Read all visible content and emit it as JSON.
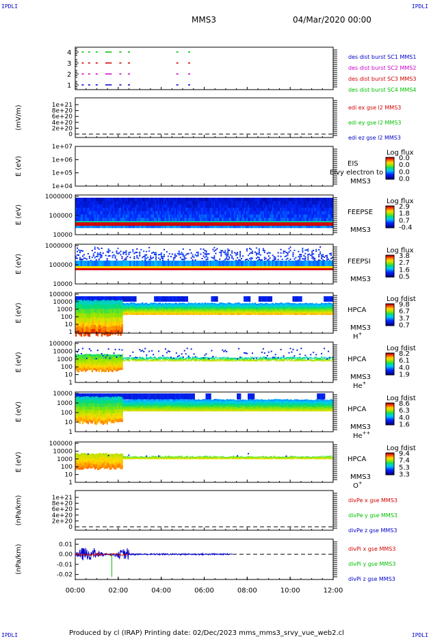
{
  "corner_label": "IPDLI",
  "header": {
    "title": "MMS3",
    "date": "04/Mar/2020 00:00"
  },
  "footer": {
    "text": "Produced by cl (IRAP)   Printing date: 02/Dec/2023   mms_mms3_srvy_vue_web2.cl"
  },
  "time_axis": {
    "ticks": [
      "00:00",
      "02:00",
      "04:00",
      "06:00",
      "08:00",
      "10:00",
      "12:00"
    ]
  },
  "colors": {
    "red": "#d40000",
    "green": "#00c000",
    "blue": "#0000cc",
    "magenta": "#cc00cc"
  },
  "chart_data": [
    {
      "type": "scatter",
      "name": "burst",
      "yticks": [
        "4",
        "3",
        "2",
        "1"
      ],
      "legend": [
        {
          "text": "des dist burst SC1 MMS1",
          "color": "#0000cc"
        },
        {
          "text": "des dist burst SC2 MMS2",
          "color": "#cc00cc"
        },
        {
          "text": "des dist burst SC3 MMS3",
          "color": "#d40000"
        },
        {
          "text": "des dist burst SC4 MMS4",
          "color": "#00c000"
        }
      ],
      "series": [
        {
          "level": 4,
          "color": "#00c000",
          "x": [
            0.3,
            0.6,
            0.95,
            1.4,
            1.5,
            1.6,
            2.05,
            2.45,
            4.7,
            5.25
          ]
        },
        {
          "level": 3,
          "color": "#d40000",
          "x": [
            0.3,
            0.6,
            0.95,
            1.4,
            1.5,
            1.6,
            2.05,
            2.45,
            4.7,
            5.25
          ]
        },
        {
          "level": 2,
          "color": "#cc00cc",
          "x": [
            0.3,
            0.6,
            0.95,
            1.4,
            1.5,
            1.6,
            2.05,
            2.45,
            4.7,
            5.25
          ]
        },
        {
          "level": 1,
          "color": "#0000cc",
          "x": [
            0.3,
            0.6,
            0.95,
            1.4,
            1.5,
            1.6,
            2.05,
            2.45,
            4.7,
            5.25
          ]
        }
      ]
    },
    {
      "type": "line",
      "name": "edi",
      "ylabel": "(mV/m)",
      "yticks": [
        "1e+21",
        "8e+20",
        "6e+20",
        "4e+20",
        "2e+20",
        "0"
      ],
      "legend": [
        {
          "text": "edi ex gse l2 MMS3",
          "color": "#d40000"
        },
        {
          "text": "edi ey gse l2 MMS3",
          "color": "#00c000"
        },
        {
          "text": "edi ez gse l2 MMS3",
          "color": "#0000cc"
        }
      ]
    },
    {
      "type": "heatmap",
      "name": "eis",
      "ylabel": "E (eV)",
      "yticks": [
        "1e+07",
        "1e+06",
        "1e+05",
        "1e+04"
      ],
      "label1": "EIS",
      "overlay": "Elvy electron to",
      "label2": "MMS3",
      "cbar": {
        "title": "Log flux",
        "ticks": [
          "0.0",
          "0.0",
          "0.0",
          "0.0"
        ]
      }
    },
    {
      "type": "heatmap",
      "name": "feepse",
      "ylabel": "E (eV)",
      "yticks": [
        "1000000",
        "100000",
        "10000"
      ],
      "label1": "FEEPSE",
      "label2": "MMS3",
      "cbar": {
        "title": "Log flux",
        "ticks": [
          "2.9",
          "1.8",
          "0.7",
          "-0.4"
        ]
      }
    },
    {
      "type": "heatmap",
      "name": "feepsi",
      "ylabel": "E (eV)",
      "yticks": [
        "1000000",
        "100000",
        "10000"
      ],
      "label1": "FEEPSI",
      "label2": "MMS3",
      "cbar": {
        "title": "Log flux",
        "ticks": [
          "3.8",
          "2.7",
          "1.6",
          "0.5"
        ]
      }
    },
    {
      "type": "heatmap",
      "name": "hpca_h",
      "ylabel": "E (eV)",
      "yticks": [
        "100000",
        "10000",
        "1000",
        "100",
        "10",
        "1"
      ],
      "label1": "HPCA",
      "label2": "MMS3",
      "species": "H",
      "charge": "+",
      "cbar": {
        "title": "Log fdist",
        "ticks": [
          "9.8",
          "6.7",
          "3.7",
          "0.7"
        ]
      }
    },
    {
      "type": "heatmap",
      "name": "hpca_he",
      "ylabel": "E (eV)",
      "yticks": [
        "100000",
        "10000",
        "1000",
        "100",
        "10",
        "1"
      ],
      "label1": "HPCA",
      "label2": "MMS3",
      "species": "He",
      "charge": "+",
      "cbar": {
        "title": "Log fdist",
        "ticks": [
          "8.2",
          "6.1",
          "4.0",
          "1.9"
        ]
      }
    },
    {
      "type": "heatmap",
      "name": "hpca_hepp",
      "ylabel": "E (eV)",
      "yticks": [
        "10000",
        "1000",
        "100",
        "10",
        "1"
      ],
      "label1": "HPCA",
      "label2": "MMS3",
      "species": "He",
      "charge": "++",
      "cbar": {
        "title": "Log fdist",
        "ticks": [
          "8.6",
          "6.3",
          "4.0",
          "1.6"
        ]
      }
    },
    {
      "type": "heatmap",
      "name": "hpca_o",
      "ylabel": "E (eV)",
      "yticks": [
        "100000",
        "10000",
        "1000",
        "100",
        "10",
        "1"
      ],
      "label1": "HPCA",
      "label2": "MMS3",
      "species": "O",
      "charge": "+",
      "cbar": {
        "title": "Log fdist",
        "ticks": [
          "9.4",
          "7.4",
          "5.3",
          "3.3"
        ]
      }
    },
    {
      "type": "line",
      "name": "divpe",
      "ylabel": "(nPa/km)",
      "yticks": [
        "1e+21",
        "8e+20",
        "6e+20",
        "4e+20",
        "2e+20",
        "0"
      ],
      "legend": [
        {
          "text": "divPe x gse MMS3",
          "color": "#d40000"
        },
        {
          "text": "divPe y gse MMS3",
          "color": "#00c000"
        },
        {
          "text": "divPe z gse MMS3",
          "color": "#0000cc"
        }
      ]
    },
    {
      "type": "line",
      "name": "divpi",
      "ylabel": "(nPa/km)",
      "yticks": [
        "0.01",
        "0.00",
        "-0.01",
        "-0.02"
      ],
      "ylim": [
        -0.025,
        0.015
      ],
      "legend": [
        {
          "text": "divPi x gse MMS3",
          "color": "#d40000"
        },
        {
          "text": "divPi y gse MMS3",
          "color": "#00c000"
        },
        {
          "text": "divPi z gse MMS3",
          "color": "#0000cc"
        }
      ]
    }
  ]
}
